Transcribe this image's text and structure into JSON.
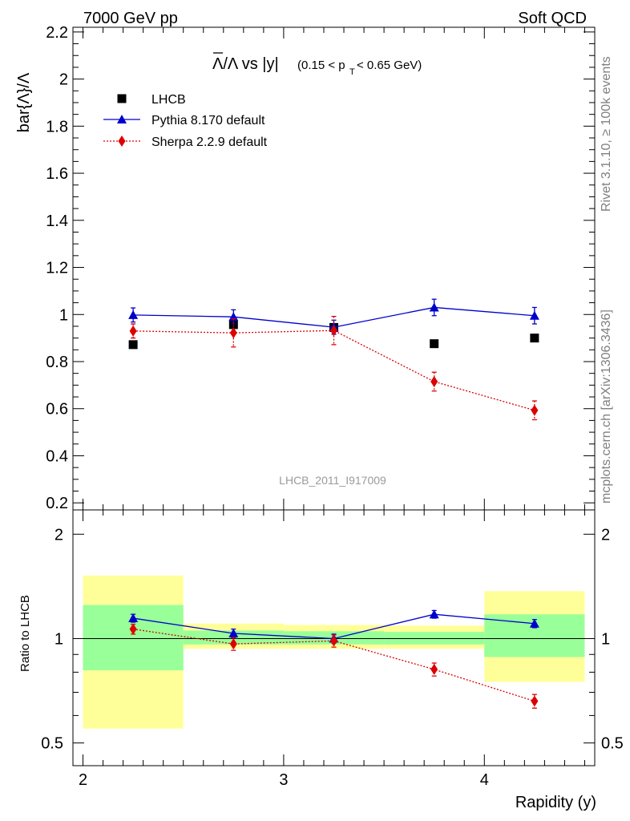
{
  "header": {
    "left": "7000 GeV pp",
    "right": "Soft QCD"
  },
  "side_text": {
    "rivet": "Rivet 3.1.10, ≥ 100k events",
    "mcplots": "mcplots.cern.ch [arXiv:1306.3436]"
  },
  "watermark": "LHCB_2011_I917009",
  "chart_data": [
    {
      "type": "scatter",
      "title_main": "Λ/Λ vs |y|",
      "title_sub": "(0.15 < p",
      "title_sub_sub": "T",
      "title_sub_end": " < 0.65 GeV)",
      "ylabel": "bar{Λ}/Λ",
      "ylim": [
        0.17,
        2.22
      ],
      "xlim": [
        1.95,
        4.55
      ],
      "yticks": [
        "0.2",
        "0.4",
        "0.6",
        "0.8",
        "1",
        "1.2",
        "1.4",
        "1.6",
        "1.8",
        "2",
        "2.2"
      ],
      "ytick_values": [
        0.2,
        0.4,
        0.6,
        0.8,
        1.0,
        1.2,
        1.4,
        1.6,
        1.8,
        2.0,
        2.2
      ],
      "legend_position": "top-left",
      "x": [
        2.25,
        2.75,
        3.25,
        3.75,
        4.25
      ],
      "series": [
        {
          "name": "LHCB",
          "color": "#000000",
          "marker": "square",
          "values": [
            0.872,
            0.957,
            0.945,
            0.876,
            0.9
          ],
          "errors": [
            0.0,
            0.0,
            0.0,
            0.0,
            0.0
          ]
        },
        {
          "name": "Pythia 8.170 default",
          "color": "#0000cc",
          "marker": "triangle",
          "line": "solid",
          "values": [
            0.998,
            0.99,
            0.946,
            1.03,
            0.995
          ],
          "errors": [
            0.03,
            0.03,
            0.03,
            0.035,
            0.035
          ]
        },
        {
          "name": "Sherpa 2.2.9 default",
          "color": "#dd0000",
          "marker": "diamond",
          "line": "dotted",
          "values": [
            0.93,
            0.922,
            0.932,
            0.715,
            0.593
          ],
          "errors": [
            0.03,
            0.06,
            0.06,
            0.04,
            0.04
          ]
        }
      ]
    },
    {
      "type": "scatter",
      "ylabel": "Ratio to LHCB",
      "ylim": [
        0.43,
        2.35
      ],
      "xlim": [
        1.95,
        4.55
      ],
      "xlabel": "Rapidity (y)",
      "xticks": [
        "2",
        "3",
        "4"
      ],
      "xtick_values": [
        2,
        3,
        4
      ],
      "yticks": [
        "0.5",
        "1",
        "2"
      ],
      "ytick_values": [
        0.5,
        1.0,
        2.0
      ],
      "bands": [
        {
          "x": [
            2.0,
            2.5
          ],
          "outer": [
            0.55,
            1.52
          ],
          "inner": [
            0.81,
            1.25
          ]
        },
        {
          "x": [
            2.5,
            3.0
          ],
          "outer": [
            0.935,
            1.105
          ],
          "inner": [
            0.962,
            1.055
          ]
        },
        {
          "x": [
            3.0,
            3.5
          ],
          "outer": [
            0.935,
            1.095
          ],
          "inner": [
            0.962,
            1.05
          ]
        },
        {
          "x": [
            3.5,
            4.0
          ],
          "outer": [
            0.935,
            1.09
          ],
          "inner": [
            0.962,
            1.045
          ]
        },
        {
          "x": [
            4.0,
            4.5
          ],
          "outer": [
            0.75,
            1.37
          ],
          "inner": [
            0.885,
            1.175
          ]
        }
      ],
      "series": [
        {
          "name": "Pythia 8.170 default",
          "color": "#0000cc",
          "marker": "triangle",
          "line": "solid",
          "values": [
            1.145,
            1.035,
            1.0,
            1.175,
            1.105
          ],
          "errors": [
            0.03,
            0.03,
            0.03,
            0.03,
            0.03
          ]
        },
        {
          "name": "Sherpa 2.2.9 default",
          "color": "#dd0000",
          "marker": "diamond",
          "line": "dotted",
          "values": [
            1.065,
            0.965,
            0.985,
            0.815,
            0.66
          ],
          "errors": [
            0.035,
            0.04,
            0.04,
            0.035,
            0.03
          ]
        }
      ]
    }
  ]
}
